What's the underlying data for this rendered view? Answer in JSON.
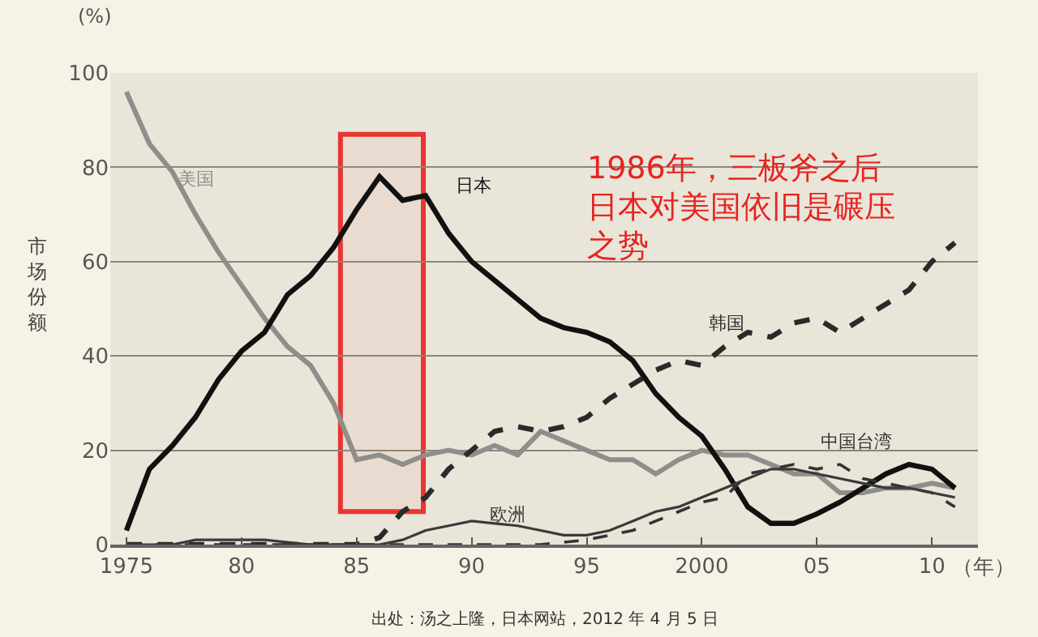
{
  "chart_data": {
    "type": "line",
    "ylabel": "市场份额",
    "xlabel": "（年）",
    "annotations": [
      "(%)",
      "1986年，三板斧之后日本对美国依旧是碾压之势",
      "出处：汤之上隆，日本网站，2012 年 4 月 5 日"
    ],
    "x": [
      1975,
      1976,
      1977,
      1978,
      1979,
      1980,
      1981,
      1982,
      1983,
      1984,
      1985,
      1986,
      1987,
      1988,
      1989,
      1990,
      1991,
      1992,
      1993,
      1994,
      1995,
      1996,
      1997,
      1998,
      1999,
      2000,
      2001,
      2002,
      2003,
      2004,
      2005,
      2006,
      2007,
      2008,
      2009,
      2010,
      2011
    ],
    "series": [
      {
        "name": "美国",
        "color": "#8e8e8a",
        "line_style": "solid",
        "values": [
          96,
          85,
          79,
          70,
          62,
          55,
          48,
          42,
          38,
          30,
          18,
          19,
          17,
          19,
          20,
          19,
          21,
          19,
          24,
          22,
          20,
          18,
          18,
          15,
          18,
          20,
          19,
          19,
          17,
          15,
          15,
          11,
          11,
          12,
          12,
          13,
          12
        ]
      },
      {
        "name": "日本",
        "color": "#111111",
        "line_style": "solid",
        "values": [
          3,
          16,
          21,
          27,
          35,
          41,
          45,
          53,
          57,
          63,
          71,
          78,
          73,
          74,
          66,
          60,
          56,
          52,
          48,
          46,
          45,
          43,
          39,
          32,
          27,
          23,
          16,
          8,
          4.5,
          4.5,
          6.5,
          9,
          12,
          15,
          17,
          16,
          12
        ]
      },
      {
        "name": "韩国",
        "color": "#2a2a2a",
        "line_style": "dashed",
        "values": [
          0,
          0,
          0,
          0,
          0,
          0,
          0,
          0,
          0,
          0,
          0,
          1.5,
          7,
          10,
          16,
          20,
          24,
          25,
          24,
          25,
          27,
          31,
          34,
          37,
          39,
          38,
          42,
          45,
          44,
          47,
          48,
          45,
          48,
          51,
          54,
          60,
          64
        ]
      },
      {
        "name": "中国台湾",
        "color": "#333333",
        "line_style": "dashed",
        "values": [
          0,
          0,
          0,
          0,
          0,
          0,
          0,
          0,
          0,
          0,
          0,
          0,
          0,
          0,
          0,
          0,
          0,
          0,
          0,
          0.5,
          1,
          2,
          3,
          5,
          7,
          9,
          10,
          15,
          16,
          17,
          16,
          17,
          14,
          13,
          12,
          11,
          8
        ]
      },
      {
        "name": "欧洲",
        "color": "#3a3a3a",
        "line_style": "solid",
        "values": [
          0,
          0,
          0,
          1,
          1,
          1,
          1,
          0.5,
          0,
          0,
          0,
          0,
          1,
          3,
          4,
          5,
          4.5,
          4,
          3,
          2,
          2,
          3,
          5,
          7,
          8,
          10,
          12,
          14,
          16,
          16,
          15,
          14,
          13,
          12,
          12,
          11,
          10
        ]
      }
    ],
    "xlim": [
      1974.3,
      2012
    ],
    "xticks": [
      1975,
      {
        "value": 1980,
        "label": "80"
      },
      {
        "value": 1985,
        "label": "85"
      },
      {
        "value": 1990,
        "label": "90"
      },
      {
        "value": 1995,
        "label": "95"
      },
      2000,
      {
        "value": 2005,
        "label": "05"
      },
      {
        "value": 2010,
        "label": "10"
      }
    ],
    "ylim": [
      0,
      100
    ],
    "yticks": [
      0,
      20,
      40,
      60,
      80,
      100
    ],
    "grid": "y",
    "legend": false,
    "marker": "none",
    "bands": [
      {
        "axis": "x",
        "from": 1984.3,
        "to": 1987.9,
        "color": "#e8231f"
      }
    ]
  }
}
